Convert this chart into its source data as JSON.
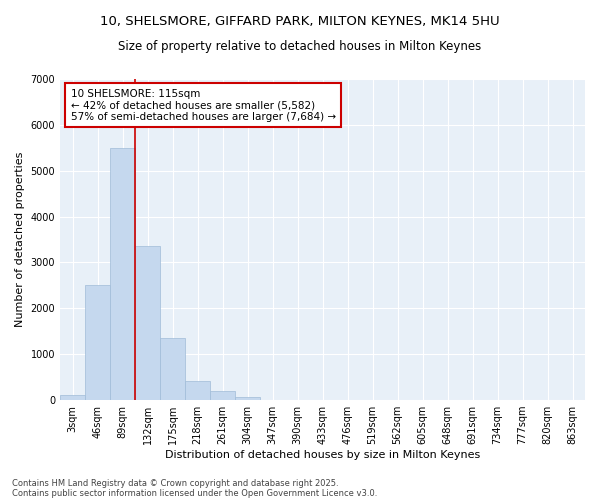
{
  "title_line1": "10, SHELSMORE, GIFFARD PARK, MILTON KEYNES, MK14 5HU",
  "title_line2": "Size of property relative to detached houses in Milton Keynes",
  "xlabel": "Distribution of detached houses by size in Milton Keynes",
  "ylabel": "Number of detached properties",
  "bar_color": "#c5d8ee",
  "bar_edge_color": "#a0bcd8",
  "fig_background": "#ffffff",
  "plot_background": "#e8f0f8",
  "grid_color": "#ffffff",
  "categories": [
    "3sqm",
    "46sqm",
    "89sqm",
    "132sqm",
    "175sqm",
    "218sqm",
    "261sqm",
    "304sqm",
    "347sqm",
    "390sqm",
    "433sqm",
    "476sqm",
    "519sqm",
    "562sqm",
    "605sqm",
    "648sqm",
    "691sqm",
    "734sqm",
    "777sqm",
    "820sqm",
    "863sqm"
  ],
  "values": [
    100,
    2500,
    5500,
    3350,
    1350,
    420,
    200,
    70,
    0,
    0,
    0,
    0,
    0,
    0,
    0,
    0,
    0,
    0,
    0,
    0,
    0
  ],
  "ylim": [
    0,
    7000
  ],
  "yticks": [
    0,
    1000,
    2000,
    3000,
    4000,
    5000,
    6000,
    7000
  ],
  "vline_x_index": 2.605,
  "annotation_text": "10 SHELSMORE: 115sqm\n← 42% of detached houses are smaller (5,582)\n57% of semi-detached houses are larger (7,684) →",
  "annotation_box_color": "#ffffff",
  "annotation_border_color": "#cc0000",
  "vline_color": "#cc0000",
  "footer_line1": "Contains HM Land Registry data © Crown copyright and database right 2025.",
  "footer_line2": "Contains public sector information licensed under the Open Government Licence v3.0.",
  "title_fontsize": 9.5,
  "subtitle_fontsize": 8.5,
  "axis_label_fontsize": 8,
  "tick_fontsize": 7,
  "annotation_fontsize": 7.5,
  "footer_fontsize": 6
}
